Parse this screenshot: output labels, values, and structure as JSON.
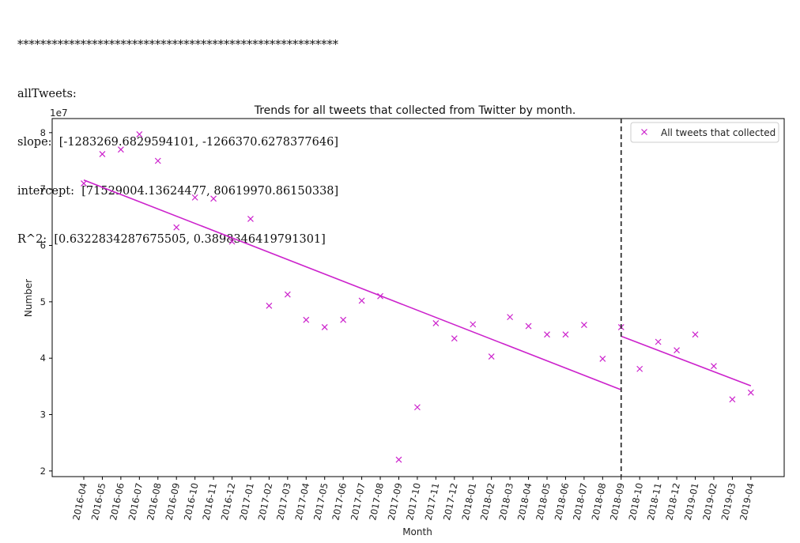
{
  "console": {
    "lines": [
      "********************************************************",
      "allTweets:",
      "slope:  [-1283269.6829594101, -1266370.6278377646]",
      "intercept:  [71529004.13624477, 80619970.86150338]",
      "R^2:  [0.6322834287675505, 0.3898346419791301]"
    ]
  },
  "chart_data": {
    "type": "scatter",
    "title": "Trends for all tweets that collected from Twitter by month.",
    "xlabel": "Month",
    "ylabel": "Number",
    "y_offset_label": "1e7",
    "y_scale": 10000000,
    "ylim": [
      1.9,
      8.25
    ],
    "yticks": [
      2,
      3,
      4,
      5,
      6,
      7,
      8
    ],
    "categories": [
      "2016-04",
      "2016-05",
      "2016-06",
      "2016-07",
      "2016-08",
      "2016-09",
      "2016-10",
      "2016-11",
      "2016-12",
      "2017-01",
      "2017-02",
      "2017-03",
      "2017-04",
      "2017-05",
      "2017-06",
      "2017-07",
      "2017-08",
      "2017-09",
      "2017-10",
      "2017-11",
      "2017-12",
      "2018-01",
      "2018-02",
      "2018-03",
      "2018-04",
      "2018-05",
      "2018-06",
      "2018-07",
      "2018-08",
      "2018-09",
      "2018-10",
      "2018-11",
      "2018-12",
      "2019-01",
      "2019-02",
      "2019-03",
      "2019-04"
    ],
    "series": [
      {
        "name": "All tweets that collected",
        "marker": "x",
        "color": "#cc22cc",
        "values": [
          7.1,
          7.62,
          7.7,
          7.97,
          7.5,
          6.32,
          6.85,
          6.83,
          6.07,
          6.47,
          4.93,
          5.13,
          4.68,
          4.55,
          4.68,
          5.02,
          5.1,
          2.2,
          3.13,
          4.62,
          4.35,
          4.6,
          4.03,
          4.73,
          4.57,
          4.42,
          4.42,
          4.59,
          3.99,
          4.55,
          3.81,
          4.29,
          4.14,
          4.42,
          3.86,
          3.27,
          3.39
        ]
      }
    ],
    "trend_lines": [
      {
        "x_start": "2016-04",
        "x_end": "2018-09",
        "y_start": 7.16,
        "y_end": 3.44,
        "color": "#cc22cc"
      },
      {
        "x_start": "2018-09",
        "x_end": "2019-04",
        "y_start": 4.39,
        "y_end": 3.51,
        "color": "#cc22cc"
      }
    ],
    "vline": {
      "x": "2018-09",
      "style": "dashed",
      "color": "#333333"
    },
    "legend_placement": "top-right",
    "grid": false
  }
}
